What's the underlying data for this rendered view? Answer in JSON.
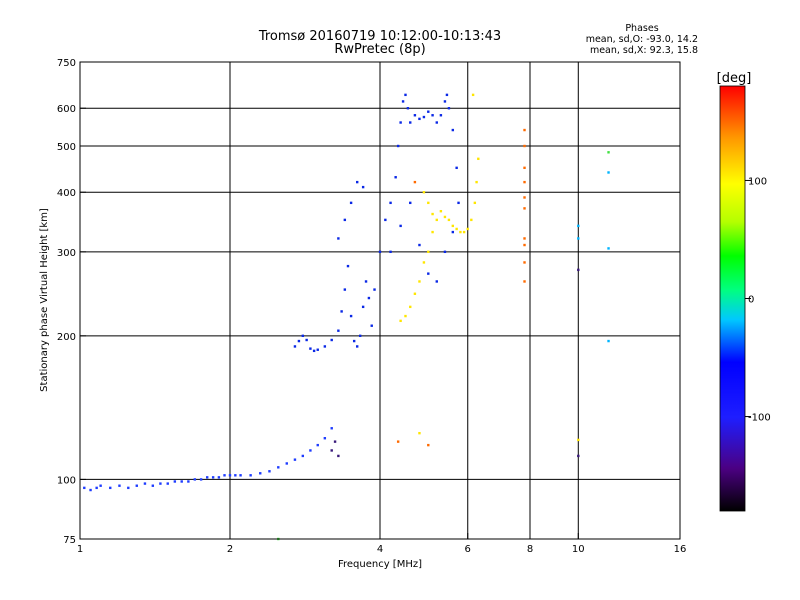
{
  "header": {
    "title": "Tromsø 20160719 10:12:00-10:13:43",
    "subtitle": "RwPretec (8p)",
    "stats_title": "Phases",
    "stats_line1": "mean, sd,O: -93.0, 14.2",
    "stats_line2": "mean, sd,X:  92.3, 15.8"
  },
  "chart_data": {
    "type": "scatter",
    "title": "Tromsø 20160719 10:12:00-10:13:43",
    "subtitle": "RwPretec (8p)",
    "xlabel": "Frequency [MHz]",
    "ylabel": "Stationary phase Virtual Height [km]",
    "x_scale": "log",
    "y_scale": "log",
    "xlim": [
      1,
      16
    ],
    "ylim": [
      75,
      750
    ],
    "x_ticks": [
      1,
      2,
      4,
      6,
      8,
      10,
      16
    ],
    "x_tick_labels": [
      "1",
      "2",
      "4",
      "6",
      "8",
      "10",
      "16"
    ],
    "y_ticks": [
      75,
      100,
      200,
      300,
      400,
      500,
      600,
      750
    ],
    "y_tick_labels": [
      "75",
      "100",
      "200",
      "300",
      "400",
      "500",
      "600",
      "750"
    ],
    "grid": true,
    "colorbar": {
      "label": "[deg]",
      "range": [
        -180,
        180
      ],
      "ticks": [
        100,
        0,
        -100
      ],
      "tick_labels": [
        "100",
        "0",
        "-100"
      ],
      "colors": [
        "#000000",
        "#4b0082",
        "#1e1eff",
        "#0000ff",
        "#00c8ff",
        "#00ff80",
        "#00ff00",
        "#b4ff00",
        "#ffff00",
        "#ff9600",
        "#ff0000"
      ]
    },
    "series": [
      {
        "color": "#1e3cff",
        "points": [
          [
            1.02,
            96
          ],
          [
            1.05,
            95
          ],
          [
            1.08,
            96
          ],
          [
            1.1,
            97
          ],
          [
            1.15,
            96
          ],
          [
            1.2,
            97
          ],
          [
            1.25,
            96
          ],
          [
            1.3,
            97
          ],
          [
            1.35,
            98
          ],
          [
            1.4,
            97
          ],
          [
            1.45,
            98
          ],
          [
            1.5,
            98
          ],
          [
            1.55,
            99
          ],
          [
            1.6,
            99
          ],
          [
            1.65,
            99
          ],
          [
            1.7,
            100
          ],
          [
            1.75,
            100
          ],
          [
            1.8,
            101
          ],
          [
            1.85,
            101
          ],
          [
            1.9,
            101
          ],
          [
            1.95,
            102
          ],
          [
            2.0,
            102
          ],
          [
            2.05,
            102
          ],
          [
            2.1,
            102
          ],
          [
            2.2,
            102
          ],
          [
            2.3,
            103
          ],
          [
            2.4,
            104
          ],
          [
            2.5,
            106
          ],
          [
            2.6,
            108
          ],
          [
            2.7,
            110
          ],
          [
            2.8,
            112
          ],
          [
            2.9,
            115
          ],
          [
            3.0,
            118
          ],
          [
            3.1,
            122
          ],
          [
            3.2,
            128
          ]
        ]
      },
      {
        "color": "#0a28e6",
        "points": [
          [
            2.7,
            190
          ],
          [
            2.75,
            195
          ],
          [
            2.8,
            200
          ],
          [
            2.85,
            196
          ],
          [
            2.9,
            188
          ],
          [
            2.95,
            186
          ],
          [
            3.0,
            187
          ],
          [
            3.1,
            190
          ],
          [
            3.2,
            196
          ],
          [
            3.3,
            205
          ],
          [
            3.35,
            225
          ],
          [
            3.4,
            250
          ],
          [
            3.45,
            280
          ],
          [
            3.5,
            220
          ],
          [
            3.55,
            195
          ],
          [
            3.6,
            190
          ],
          [
            3.65,
            200
          ],
          [
            3.7,
            230
          ],
          [
            3.75,
            260
          ],
          [
            3.8,
            240
          ],
          [
            3.85,
            210
          ],
          [
            3.9,
            250
          ],
          [
            4.0,
            300
          ],
          [
            4.1,
            350
          ],
          [
            4.2,
            380
          ],
          [
            4.3,
            430
          ],
          [
            4.35,
            500
          ],
          [
            4.4,
            560
          ],
          [
            4.45,
            620
          ],
          [
            4.5,
            640
          ],
          [
            4.55,
            600
          ],
          [
            4.6,
            560
          ],
          [
            4.7,
            580
          ],
          [
            4.8,
            570
          ],
          [
            4.9,
            575
          ],
          [
            5.0,
            590
          ],
          [
            5.1,
            580
          ],
          [
            5.2,
            560
          ],
          [
            5.3,
            580
          ],
          [
            5.4,
            620
          ],
          [
            5.45,
            640
          ],
          [
            5.5,
            600
          ],
          [
            5.6,
            540
          ],
          [
            5.7,
            450
          ],
          [
            5.75,
            380
          ],
          [
            3.3,
            320
          ],
          [
            3.4,
            350
          ],
          [
            3.5,
            380
          ],
          [
            3.6,
            420
          ],
          [
            3.7,
            410
          ],
          [
            4.2,
            300
          ],
          [
            4.4,
            340
          ],
          [
            4.6,
            380
          ],
          [
            4.8,
            310
          ],
          [
            5.0,
            270
          ],
          [
            5.2,
            260
          ],
          [
            5.4,
            300
          ],
          [
            5.6,
            330
          ]
        ]
      },
      {
        "color": "#ffe600",
        "points": [
          [
            4.4,
            215
          ],
          [
            4.5,
            220
          ],
          [
            4.6,
            230
          ],
          [
            4.7,
            245
          ],
          [
            4.8,
            260
          ],
          [
            4.9,
            285
          ],
          [
            5.0,
            300
          ],
          [
            5.1,
            330
          ],
          [
            5.2,
            350
          ],
          [
            5.3,
            365
          ],
          [
            5.4,
            355
          ],
          [
            5.5,
            350
          ],
          [
            5.6,
            340
          ],
          [
            5.7,
            335
          ],
          [
            5.8,
            330
          ],
          [
            5.9,
            330
          ],
          [
            6.0,
            335
          ],
          [
            6.1,
            350
          ],
          [
            6.2,
            380
          ],
          [
            6.25,
            420
          ],
          [
            6.3,
            470
          ],
          [
            6.15,
            640
          ],
          [
            4.9,
            400
          ],
          [
            5.0,
            380
          ],
          [
            5.1,
            360
          ],
          [
            4.8,
            125
          ],
          [
            10.0,
            121
          ]
        ]
      },
      {
        "color": "#ff6a00",
        "points": [
          [
            7.8,
            540
          ],
          [
            7.8,
            500
          ],
          [
            7.8,
            450
          ],
          [
            7.8,
            420
          ],
          [
            7.8,
            390
          ],
          [
            7.8,
            370
          ],
          [
            7.8,
            320
          ],
          [
            7.8,
            310
          ],
          [
            7.8,
            285
          ],
          [
            7.8,
            260
          ],
          [
            4.7,
            420
          ],
          [
            4.35,
            120
          ],
          [
            5.0,
            118
          ]
        ]
      },
      {
        "color": "#00b4ff",
        "points": [
          [
            10.0,
            340
          ],
          [
            10.0,
            320
          ],
          [
            11.5,
            440
          ],
          [
            11.5,
            305
          ],
          [
            11.5,
            195
          ]
        ]
      },
      {
        "color": "#3a1a7a",
        "points": [
          [
            3.2,
            115
          ],
          [
            3.25,
            120
          ],
          [
            3.3,
            112
          ],
          [
            10.0,
            275
          ],
          [
            10.0,
            112
          ]
        ]
      },
      {
        "color": "#40e040",
        "points": [
          [
            11.5,
            485
          ],
          [
            2.5,
            75
          ]
        ]
      }
    ]
  }
}
